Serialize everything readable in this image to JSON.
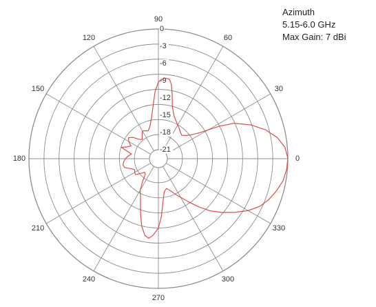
{
  "legend": {
    "line1": "Azimuth",
    "line2": "5.15-6.0 GHz",
    "line3": "Max Gain: 7 dBi"
  },
  "chart_data": {
    "type": "polar-line",
    "angle_unit": "degrees",
    "angle_ticks": [
      "0",
      "30",
      "60",
      "90",
      "120",
      "150",
      "180",
      "210",
      "240",
      "270",
      "300",
      "330"
    ],
    "angle_tick_values": [
      0,
      30,
      60,
      90,
      120,
      150,
      180,
      210,
      240,
      270,
      300,
      330
    ],
    "radial_ticks": [
      "0",
      "-3",
      "-6",
      "-9",
      "-12",
      "-15",
      "-18",
      "-21"
    ],
    "radial_tick_values": [
      0,
      -3,
      -6,
      -9,
      -12,
      -15,
      -18,
      -21
    ],
    "rlim": [
      -21,
      0
    ],
    "grid": true,
    "grid_rings_count": 8,
    "line_color": "#e04a4a",
    "grid_color": "#8c8c8c",
    "series": [
      {
        "points": [
          [
            0,
            0
          ],
          [
            5,
            -0.4
          ],
          [
            10,
            -1.5
          ],
          [
            15,
            -3.2
          ],
          [
            20,
            -5.4
          ],
          [
            25,
            -8.0
          ],
          [
            28,
            -10.5
          ],
          [
            32,
            -14.0
          ],
          [
            36,
            -15.5
          ],
          [
            40,
            -16.3
          ],
          [
            45,
            -16.8
          ],
          [
            50,
            -16.6
          ],
          [
            55,
            -16.2
          ],
          [
            60,
            -15.8
          ],
          [
            65,
            -15.3
          ],
          [
            70,
            -14.6
          ],
          [
            75,
            -13.2
          ],
          [
            78,
            -11.0
          ],
          [
            80,
            -9.5
          ],
          [
            82,
            -8.6
          ],
          [
            85,
            -8.5
          ],
          [
            88,
            -8.8
          ],
          [
            90,
            -9.2
          ],
          [
            93,
            -11.0
          ],
          [
            96,
            -13.5
          ],
          [
            100,
            -15.5
          ],
          [
            105,
            -16.8
          ],
          [
            110,
            -17.4
          ],
          [
            115,
            -17.2
          ],
          [
            120,
            -17.0
          ],
          [
            125,
            -17.6
          ],
          [
            130,
            -18.2
          ],
          [
            135,
            -17.8
          ],
          [
            140,
            -16.8
          ],
          [
            145,
            -16.2
          ],
          [
            150,
            -16.6
          ],
          [
            155,
            -17.3
          ],
          [
            160,
            -16.6
          ],
          [
            163,
            -15.8
          ],
          [
            166,
            -16.8
          ],
          [
            170,
            -17.8
          ],
          [
            175,
            -17.3
          ],
          [
            180,
            -16.8
          ],
          [
            185,
            -16.5
          ],
          [
            190,
            -16.3
          ],
          [
            195,
            -16.5
          ],
          [
            200,
            -17.5
          ],
          [
            205,
            -18.0
          ],
          [
            210,
            -17.8
          ],
          [
            215,
            -17.7
          ],
          [
            220,
            -18.6
          ],
          [
            225,
            -19.2
          ],
          [
            230,
            -19.0
          ],
          [
            235,
            -17.8
          ],
          [
            240,
            -16.2
          ],
          [
            245,
            -15.2
          ],
          [
            248,
            -14.2
          ],
          [
            252,
            -12.5
          ],
          [
            256,
            -10.5
          ],
          [
            260,
            -9.0
          ],
          [
            263,
            -8.6
          ],
          [
            266,
            -9.2
          ],
          [
            270,
            -10.5
          ],
          [
            273,
            -12.5
          ],
          [
            276,
            -15.0
          ],
          [
            280,
            -16.7
          ],
          [
            285,
            -17.2
          ],
          [
            290,
            -16.7
          ],
          [
            295,
            -15.8
          ],
          [
            300,
            -14.8
          ],
          [
            305,
            -13.4
          ],
          [
            310,
            -11.6
          ],
          [
            315,
            -9.7
          ],
          [
            320,
            -8.0
          ],
          [
            325,
            -6.3
          ],
          [
            330,
            -4.5
          ],
          [
            335,
            -3.0
          ],
          [
            340,
            -2.0
          ],
          [
            345,
            -1.2
          ],
          [
            350,
            -0.5
          ],
          [
            355,
            -0.15
          ],
          [
            360,
            0
          ]
        ]
      }
    ]
  }
}
